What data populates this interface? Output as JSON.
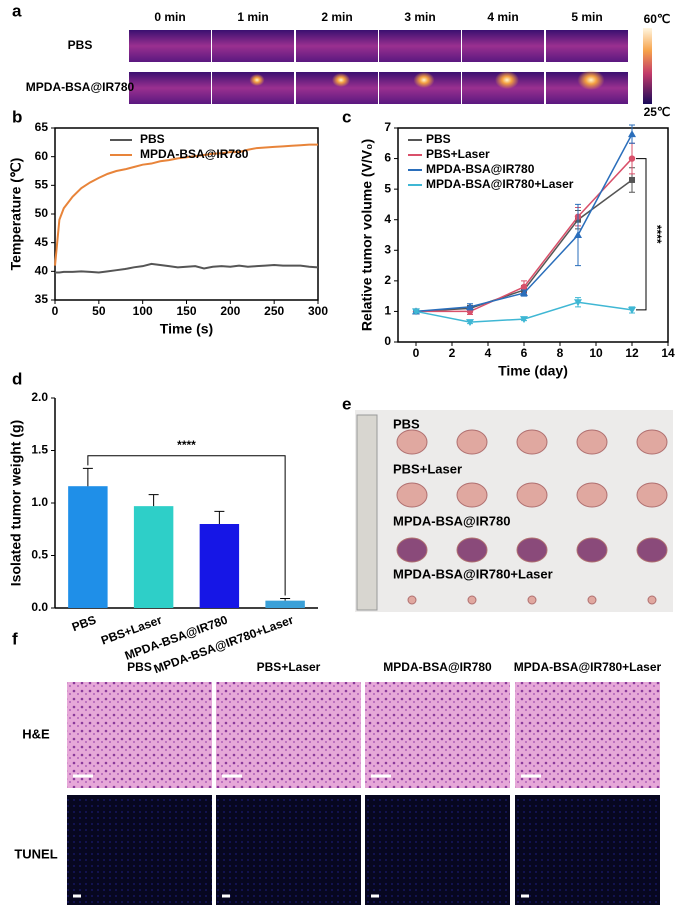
{
  "panel_labels": [
    "a",
    "b",
    "c",
    "d",
    "e",
    "f"
  ],
  "thermal": {
    "times": [
      "0 min",
      "1 min",
      "2 min",
      "3 min",
      "4 min",
      "5 min"
    ],
    "rows": [
      "PBS",
      "MPDA-BSA@IR780"
    ],
    "colorbar": {
      "max": "60℃",
      "min": "25℃"
    }
  },
  "chart_data": [
    {
      "type": "line",
      "xlabel": "Time (s)",
      "ylabel": "Temperature (℃)",
      "legend": "upper left",
      "x": [
        0,
        5,
        10,
        20,
        30,
        40,
        50,
        60,
        70,
        80,
        90,
        100,
        110,
        120,
        130,
        140,
        150,
        160,
        170,
        180,
        190,
        200,
        210,
        220,
        230,
        240,
        250,
        260,
        270,
        280,
        290,
        300
      ],
      "series": [
        {
          "name": "PBS",
          "color": "#555555",
          "values": [
            39.8,
            39.8,
            39.9,
            39.9,
            40,
            39.9,
            39.8,
            40,
            40.2,
            40.4,
            40.7,
            40.9,
            41.3,
            41.1,
            40.9,
            40.7,
            40.8,
            40.9,
            40.5,
            40.8,
            40.9,
            40.8,
            41,
            40.8,
            40.9,
            41,
            41.1,
            41,
            41,
            41,
            40.8,
            40.7
          ]
        },
        {
          "name": "MPDA-BSA@IR780",
          "color": "#e8843a",
          "values": [
            41,
            49,
            51,
            53,
            54.5,
            55.5,
            56.3,
            57,
            57.5,
            57.8,
            58.2,
            58.6,
            58.8,
            59.2,
            59.4,
            59.7,
            59.9,
            60.1,
            60.3,
            60.5,
            60.6,
            60.8,
            60.8,
            61.2,
            61.5,
            61.6,
            61.7,
            61.8,
            61.9,
            62,
            62.1,
            62.1
          ]
        }
      ],
      "xlim": [
        0,
        300
      ],
      "xticks": [
        0,
        50,
        100,
        150,
        200,
        250,
        300
      ],
      "ylim": [
        35,
        65
      ],
      "yticks": [
        35,
        40,
        45,
        50,
        55,
        60,
        65
      ]
    },
    {
      "type": "line",
      "xlabel": "Time (day)",
      "ylabel": "Relative tumor volume (V/V₀)",
      "legend": "upper left",
      "annotation": "****",
      "x": [
        0,
        3,
        6,
        9,
        12
      ],
      "series": [
        {
          "name": "PBS",
          "color": "#555555",
          "values": [
            1,
            1.1,
            1.7,
            4.0,
            5.3
          ],
          "errors": [
            0.03,
            0.1,
            0.15,
            0.3,
            0.4
          ]
        },
        {
          "name": "PBS+Laser",
          "color": "#d9506a",
          "values": [
            1,
            1.0,
            1.8,
            4.1,
            6.0
          ],
          "errors": [
            0.03,
            0.1,
            0.2,
            0.3,
            0.5
          ]
        },
        {
          "name": "MPDA-BSA@IR780",
          "color": "#2a6ebb",
          "values": [
            1,
            1.15,
            1.6,
            3.5,
            6.8
          ],
          "errors": [
            0.03,
            0.1,
            0.1,
            1.0,
            0.3
          ]
        },
        {
          "name": "MPDA-BSA@IR780+Laser",
          "color": "#3fb7d4",
          "values": [
            1,
            0.65,
            0.75,
            1.3,
            1.05
          ],
          "errors": [
            0.05,
            0.05,
            0.05,
            0.15,
            0.1
          ]
        }
      ],
      "xlim": [
        -1,
        14
      ],
      "xticks": [
        0,
        2,
        4,
        6,
        8,
        10,
        12,
        14
      ],
      "ylim": [
        0,
        7
      ],
      "yticks": [
        0,
        1,
        2,
        3,
        4,
        5,
        6,
        7
      ]
    },
    {
      "type": "bar",
      "ylabel": "Isolated tumor weight (g)",
      "annotation": "****",
      "categories": [
        "PBS",
        "PBS+Laser",
        "MPDA-BSA@IR780",
        "MPDA-BSA@IR780+Laser"
      ],
      "values": [
        1.16,
        0.97,
        0.8,
        0.07
      ],
      "errors": [
        0.17,
        0.11,
        0.12,
        0.02
      ],
      "colors": [
        "#1f8fe8",
        "#2ecfc8",
        "#1616e6",
        "#3aa0d8"
      ],
      "ylim": [
        0,
        2
      ],
      "yticks": [
        {
          "value": 0,
          "label": "0.0"
        },
        {
          "value": 0.5,
          "label": "0.5"
        },
        {
          "value": 1,
          "label": "1.0"
        },
        {
          "value": 1.5,
          "label": "1.5"
        },
        {
          "value": 2,
          "label": "2.0"
        }
      ]
    }
  ],
  "photo": {
    "rows": [
      "PBS",
      "PBS+Laser",
      "MPDA-BSA@IR780",
      "MPDA-BSA@IR780+Laser"
    ]
  },
  "histology": {
    "columns": [
      "PBS",
      "PBS+Laser",
      "MPDA-BSA@IR780",
      "MPDA-BSA@IR780+Laser"
    ],
    "rows": [
      "H&E",
      "TUNEL"
    ]
  }
}
